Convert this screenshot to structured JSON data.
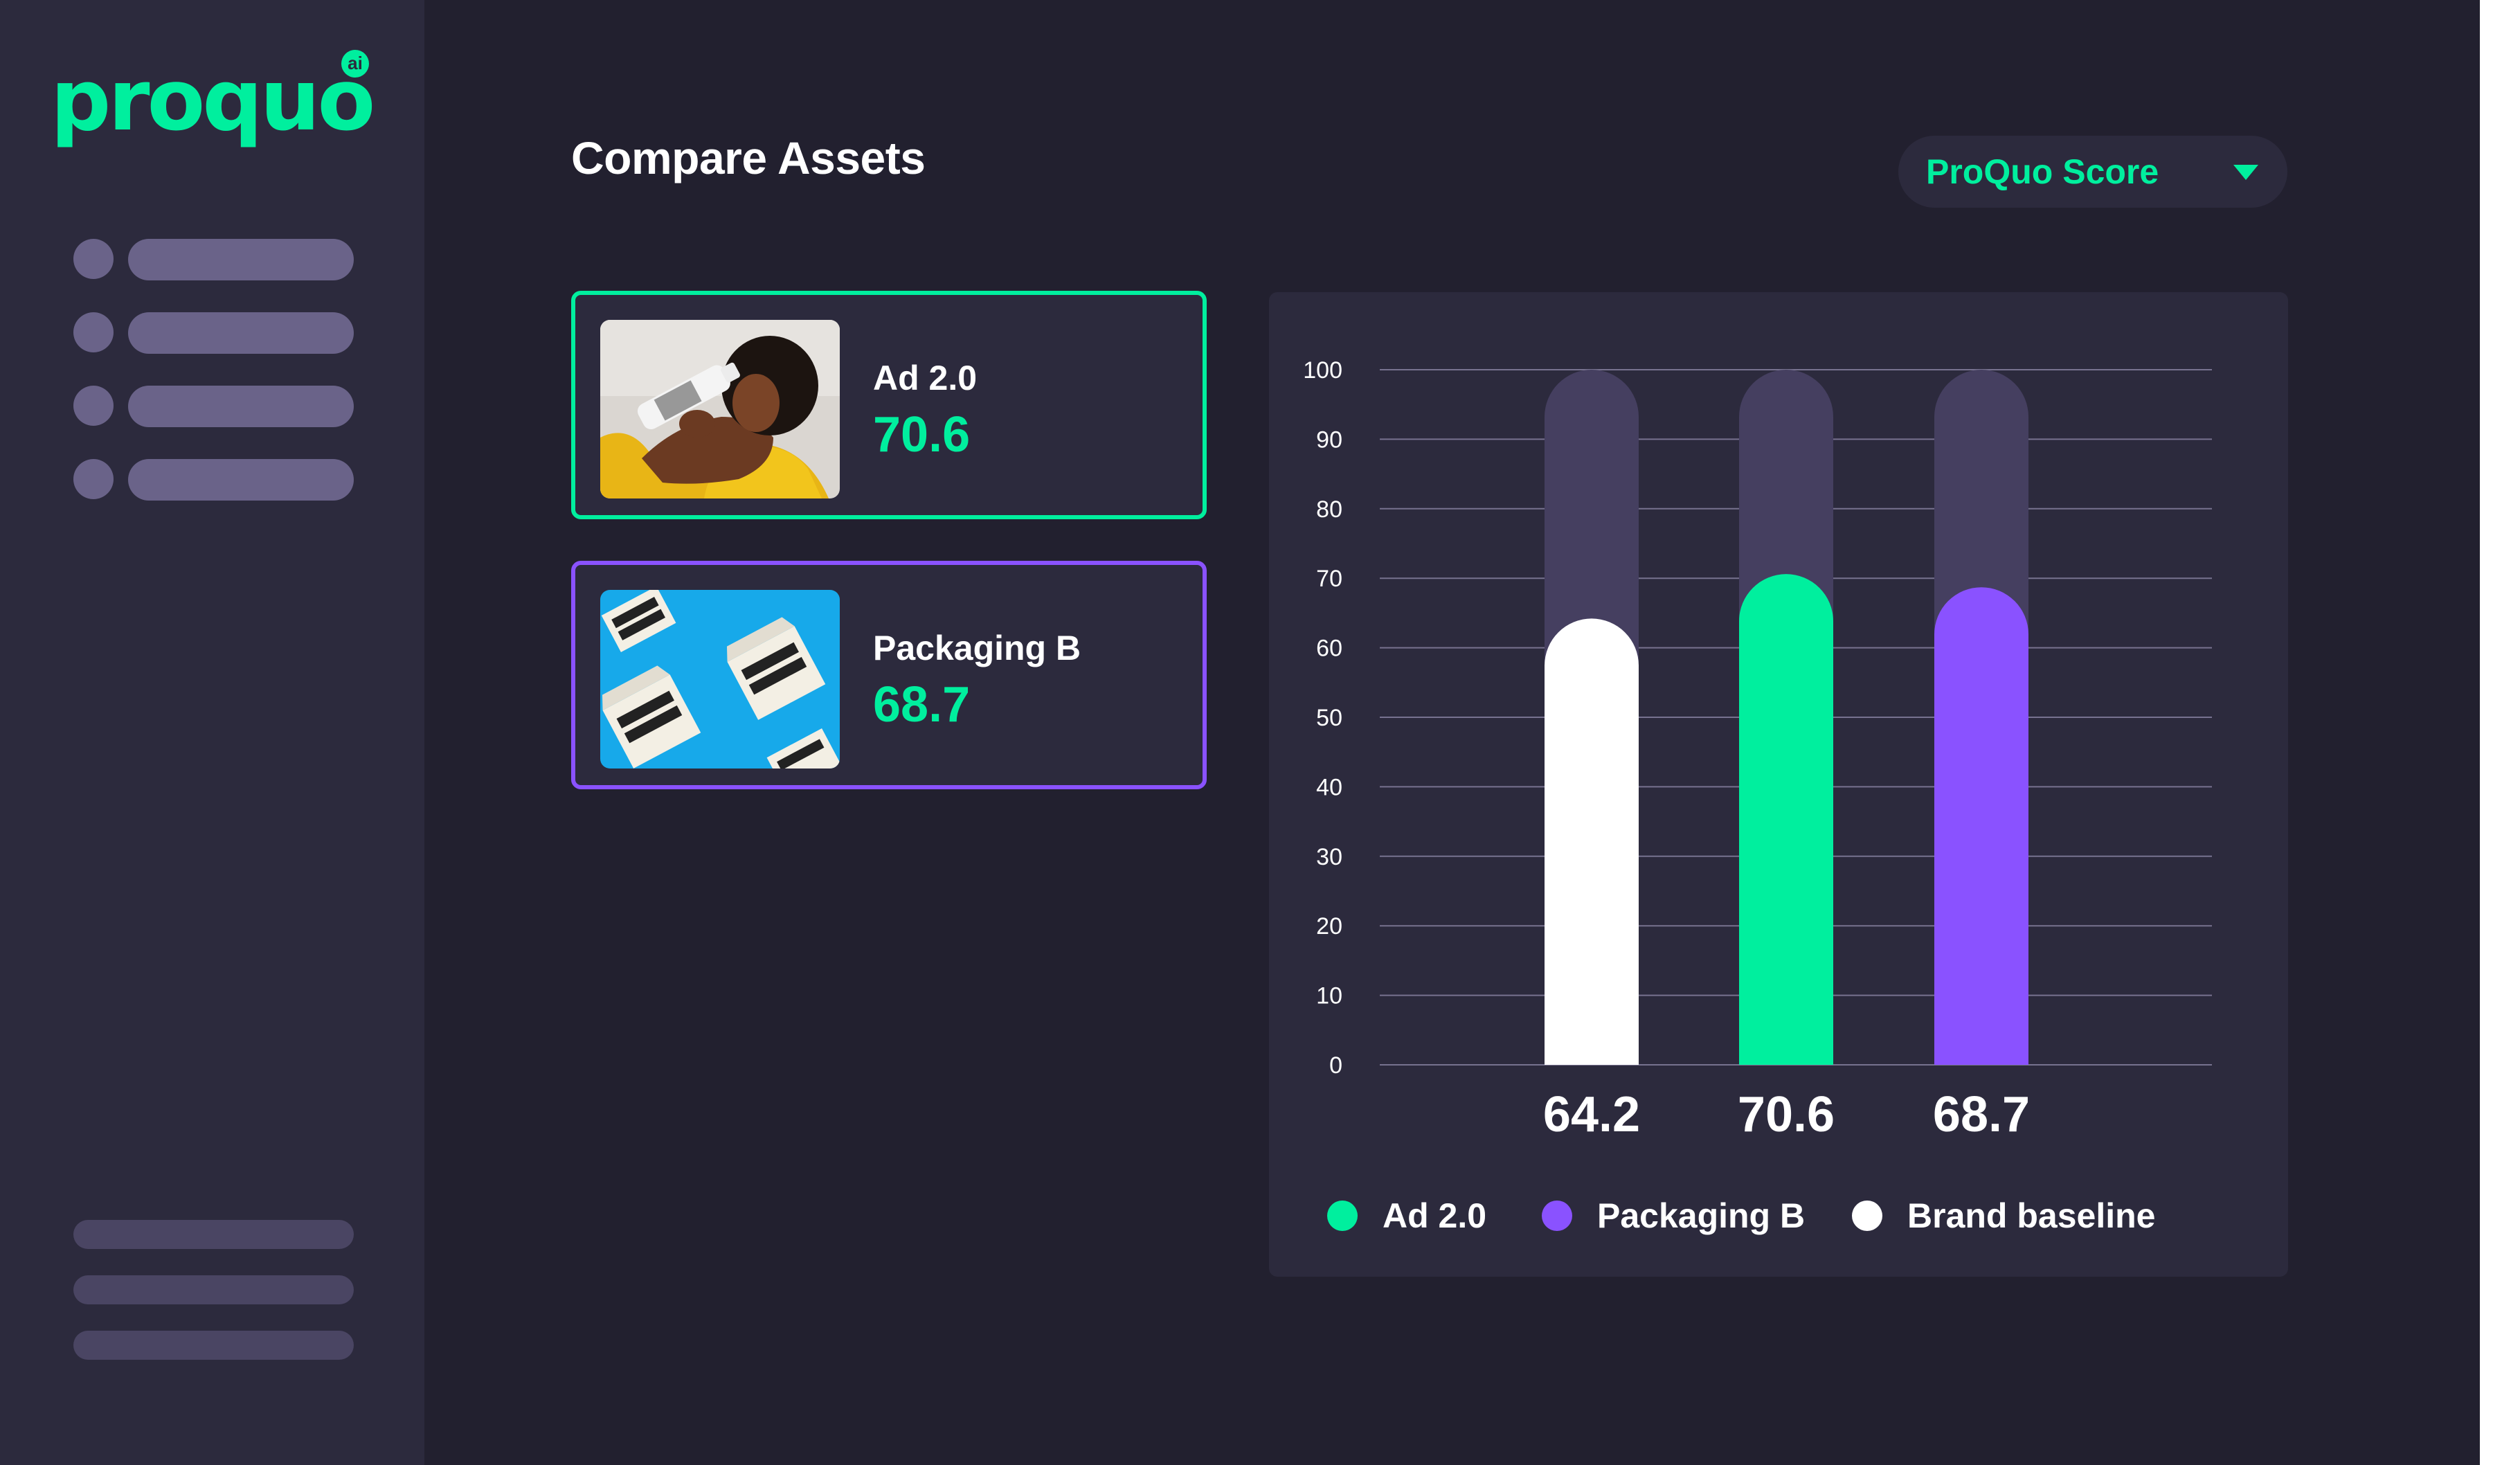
{
  "app": {
    "logo_text": "proquo",
    "logo_badge": "ai"
  },
  "header": {
    "title": "Compare Assets",
    "metric_select": {
      "selected": "ProQuo Score"
    }
  },
  "assets": [
    {
      "name": "Ad 2.0",
      "score": "70.6",
      "thumbnail": "person-drinking-water-photo",
      "border_color": "#00ef9e"
    },
    {
      "name": "Packaging B",
      "score": "68.7",
      "thumbnail": "boxed-water-cartons-photo",
      "border_color": "#8a52ff"
    }
  ],
  "chart_data": {
    "type": "bar",
    "categories": [
      "Brand baseline",
      "Ad 2.0",
      "Packaging B"
    ],
    "values": [
      64.2,
      70.6,
      68.7
    ],
    "value_labels": [
      "64.2",
      "70.6",
      "68.7"
    ],
    "colors": [
      "#ffffff",
      "#00ef9e",
      "#8a52ff"
    ],
    "track_color": "#453f60",
    "ylim": [
      0,
      100
    ],
    "yticks": [
      0,
      10,
      20,
      30,
      40,
      50,
      60,
      70,
      80,
      90,
      100
    ],
    "grid": true,
    "legend_position": "bottom",
    "legend": [
      {
        "label": "Ad 2.0",
        "color": "#00ef9e"
      },
      {
        "label": "Packaging B",
        "color": "#8a52ff"
      },
      {
        "label": "Brand baseline",
        "color": "#ffffff"
      }
    ]
  }
}
